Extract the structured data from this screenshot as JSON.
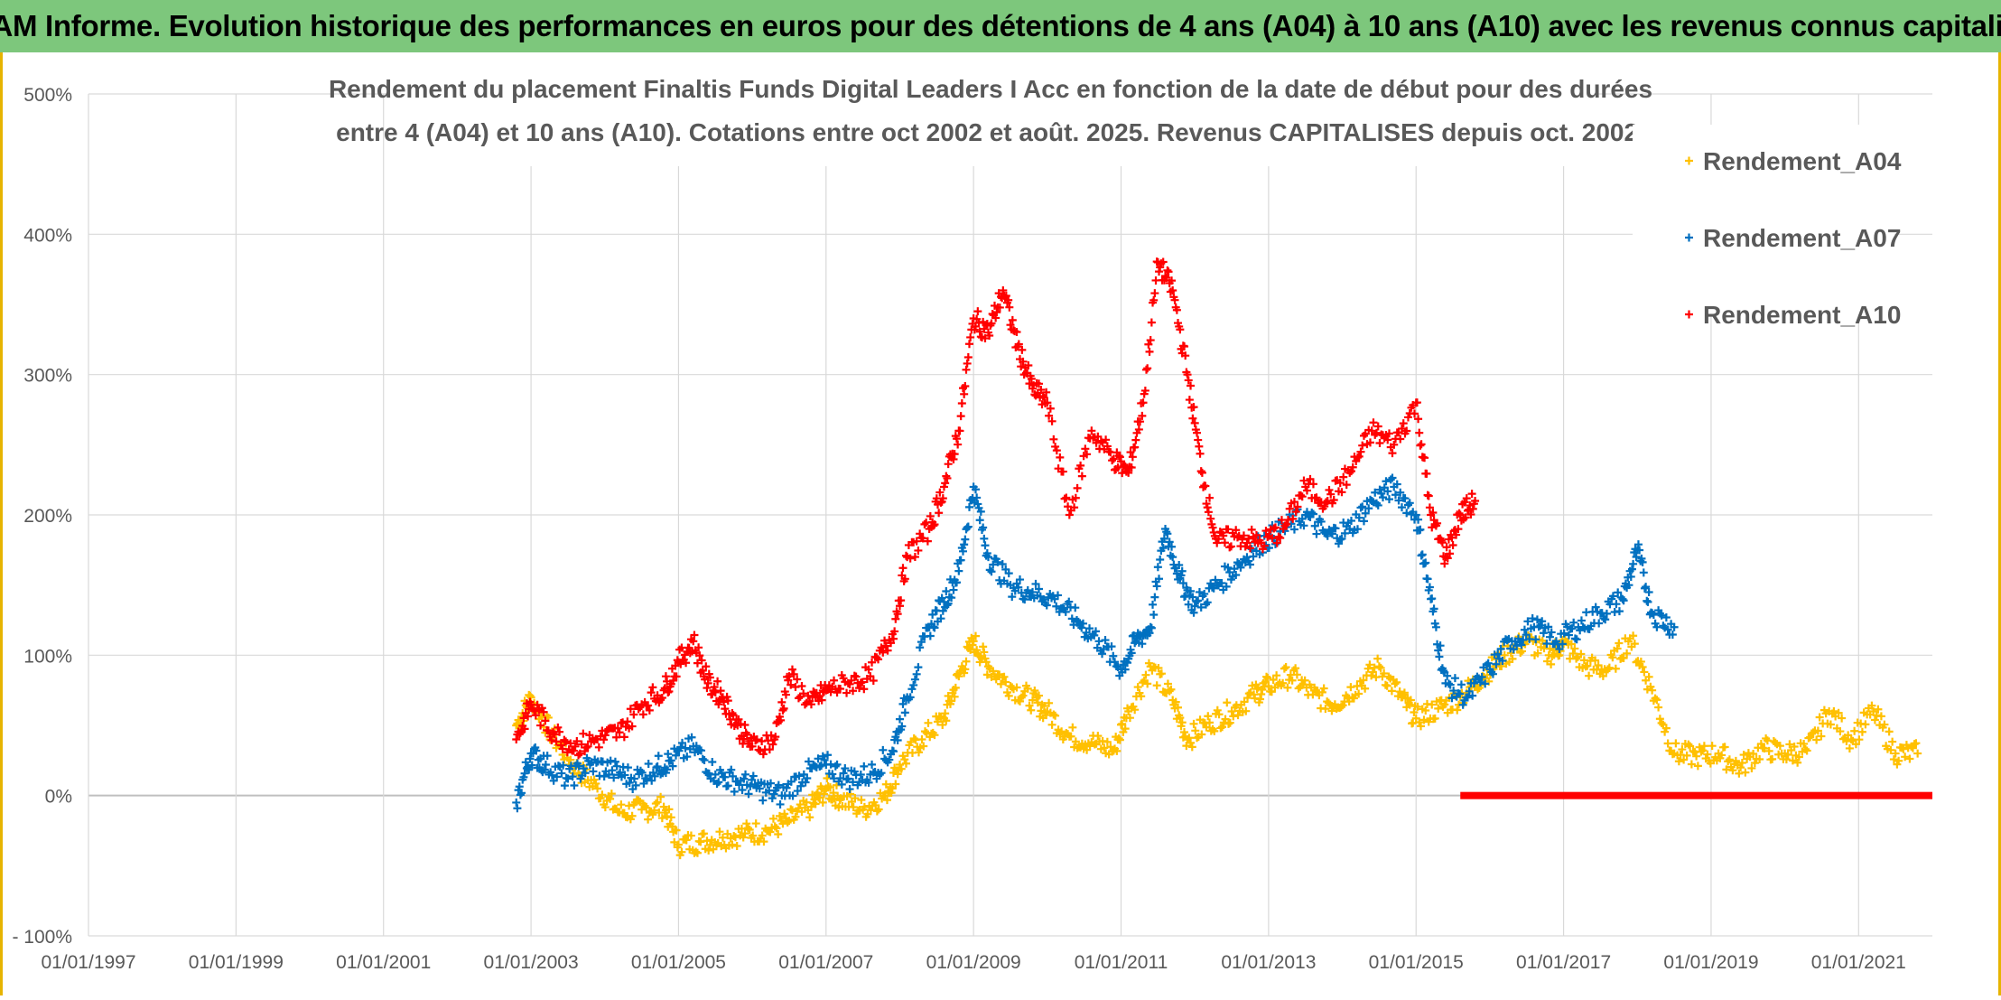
{
  "banner": {
    "title": "ADAM Informe. Evolution historique des performances en euros pour des détentions de 4 ans (A04) à 10 ans (A10) avec les revenus connus capitalisés"
  },
  "chart_data": {
    "type": "scatter",
    "title_line1": "Rendement du placement Finaltis Funds Digital Leaders I Acc en fonction de la date de début pour des durées",
    "title_line2": "entre 4 (A04) et 10 ans (A10). Cotations entre oct 2002 et août. 2025. Revenus CAPITALISES depuis oct. 2002.",
    "xlim": [
      1997.0,
      2022.0
    ],
    "ylim": [
      -100,
      500
    ],
    "y_ticks": [
      -100,
      0,
      100,
      200,
      300,
      400,
      500
    ],
    "y_tick_labels": [
      "- 100%",
      "0%",
      "100%",
      "200%",
      "300%",
      "400%",
      "500%"
    ],
    "x_tick_labels": [
      "01/01/1997",
      "01/01/1999",
      "01/01/2001",
      "01/01/2003",
      "01/01/2005",
      "01/01/2007",
      "01/01/2009",
      "01/01/2011",
      "01/01/2013",
      "01/01/2015",
      "01/01/2017",
      "01/01/2019",
      "01/01/2021"
    ],
    "x_tick_values": [
      1997,
      1999,
      2001,
      2003,
      2005,
      2007,
      2009,
      2011,
      2013,
      2015,
      2017,
      2019,
      2021
    ],
    "grid": true,
    "legend_position": "top-right",
    "series": [
      {
        "name": "Rendement_A04",
        "color": "#ffc000",
        "points": [
          [
            2002.8,
            50
          ],
          [
            2003.0,
            70
          ],
          [
            2003.3,
            42
          ],
          [
            2003.6,
            20
          ],
          [
            2003.9,
            5
          ],
          [
            2004.2,
            -12
          ],
          [
            2004.5,
            -10
          ],
          [
            2004.8,
            -8
          ],
          [
            2005.0,
            -35
          ],
          [
            2005.3,
            -33
          ],
          [
            2005.6,
            -30
          ],
          [
            2005.9,
            -27
          ],
          [
            2006.2,
            -25
          ],
          [
            2006.5,
            -18
          ],
          [
            2006.8,
            -8
          ],
          [
            2007.0,
            5
          ],
          [
            2007.2,
            -2
          ],
          [
            2007.5,
            -10
          ],
          [
            2007.8,
            0
          ],
          [
            2008.0,
            22
          ],
          [
            2008.3,
            40
          ],
          [
            2008.6,
            55
          ],
          [
            2008.8,
            85
          ],
          [
            2009.0,
            110
          ],
          [
            2009.2,
            92
          ],
          [
            2009.5,
            78
          ],
          [
            2009.8,
            68
          ],
          [
            2010.0,
            60
          ],
          [
            2010.3,
            42
          ],
          [
            2010.6,
            38
          ],
          [
            2010.9,
            32
          ],
          [
            2011.1,
            60
          ],
          [
            2011.4,
            92
          ],
          [
            2011.7,
            68
          ],
          [
            2011.9,
            40
          ],
          [
            2012.2,
            52
          ],
          [
            2012.5,
            60
          ],
          [
            2012.8,
            72
          ],
          [
            2013.0,
            78
          ],
          [
            2013.3,
            86
          ],
          [
            2013.6,
            72
          ],
          [
            2013.9,
            65
          ],
          [
            2014.2,
            78
          ],
          [
            2014.5,
            92
          ],
          [
            2014.8,
            70
          ],
          [
            2015.0,
            55
          ],
          [
            2015.3,
            62
          ],
          [
            2015.6,
            70
          ],
          [
            2015.9,
            85
          ],
          [
            2016.2,
            100
          ],
          [
            2016.5,
            110
          ],
          [
            2016.8,
            100
          ],
          [
            2017.0,
            108
          ],
          [
            2017.3,
            92
          ],
          [
            2017.6,
            90
          ],
          [
            2017.9,
            112
          ],
          [
            2018.2,
            75
          ],
          [
            2018.5,
            30
          ],
          [
            2018.8,
            28
          ],
          [
            2019.1,
            30
          ],
          [
            2019.4,
            20
          ],
          [
            2019.7,
            34
          ],
          [
            2020.0,
            30
          ],
          [
            2020.3,
            32
          ],
          [
            2020.6,
            60
          ],
          [
            2020.9,
            40
          ],
          [
            2021.2,
            60
          ],
          [
            2021.5,
            30
          ],
          [
            2021.8,
            30
          ]
        ]
      },
      {
        "name": "Rendement_A07",
        "color": "#0070c0",
        "points": [
          [
            2002.8,
            -5
          ],
          [
            2003.0,
            30
          ],
          [
            2003.2,
            22
          ],
          [
            2003.5,
            12
          ],
          [
            2003.8,
            22
          ],
          [
            2004.1,
            18
          ],
          [
            2004.4,
            12
          ],
          [
            2004.7,
            20
          ],
          [
            2004.9,
            25
          ],
          [
            2005.2,
            35
          ],
          [
            2005.5,
            15
          ],
          [
            2005.8,
            10
          ],
          [
            2006.1,
            5
          ],
          [
            2006.4,
            0
          ],
          [
            2006.7,
            15
          ],
          [
            2007.0,
            22
          ],
          [
            2007.3,
            12
          ],
          [
            2007.6,
            15
          ],
          [
            2007.9,
            32
          ],
          [
            2008.1,
            70
          ],
          [
            2008.4,
            120
          ],
          [
            2008.6,
            138
          ],
          [
            2008.8,
            160
          ],
          [
            2009.0,
            220
          ],
          [
            2009.2,
            170
          ],
          [
            2009.5,
            150
          ],
          [
            2009.8,
            145
          ],
          [
            2010.1,
            140
          ],
          [
            2010.4,
            125
          ],
          [
            2010.7,
            110
          ],
          [
            2011.0,
            90
          ],
          [
            2011.2,
            110
          ],
          [
            2011.4,
            120
          ],
          [
            2011.6,
            190
          ],
          [
            2011.8,
            155
          ],
          [
            2012.0,
            135
          ],
          [
            2012.3,
            150
          ],
          [
            2012.6,
            165
          ],
          [
            2012.9,
            180
          ],
          [
            2013.2,
            190
          ],
          [
            2013.5,
            200
          ],
          [
            2013.8,
            185
          ],
          [
            2014.1,
            190
          ],
          [
            2014.4,
            210
          ],
          [
            2014.7,
            220
          ],
          [
            2015.0,
            200
          ],
          [
            2015.2,
            140
          ],
          [
            2015.4,
            80
          ],
          [
            2015.7,
            70
          ],
          [
            2016.0,
            90
          ],
          [
            2016.3,
            110
          ],
          [
            2016.6,
            120
          ],
          [
            2016.9,
            110
          ],
          [
            2017.2,
            120
          ],
          [
            2017.5,
            130
          ],
          [
            2017.8,
            140
          ],
          [
            2018.0,
            175
          ],
          [
            2018.2,
            130
          ],
          [
            2018.5,
            120
          ]
        ]
      },
      {
        "name": "Rendement_A10",
        "color": "#ff0000",
        "points": [
          [
            2002.8,
            40
          ],
          [
            2003.0,
            65
          ],
          [
            2003.3,
            45
          ],
          [
            2003.6,
            35
          ],
          [
            2003.9,
            40
          ],
          [
            2004.2,
            45
          ],
          [
            2004.5,
            65
          ],
          [
            2004.8,
            75
          ],
          [
            2005.0,
            95
          ],
          [
            2005.2,
            110
          ],
          [
            2005.4,
            80
          ],
          [
            2005.6,
            70
          ],
          [
            2005.8,
            50
          ],
          [
            2006.0,
            35
          ],
          [
            2006.3,
            40
          ],
          [
            2006.5,
            85
          ],
          [
            2006.8,
            65
          ],
          [
            2007.0,
            75
          ],
          [
            2007.3,
            80
          ],
          [
            2007.6,
            85
          ],
          [
            2007.9,
            115
          ],
          [
            2008.1,
            170
          ],
          [
            2008.4,
            190
          ],
          [
            2008.6,
            220
          ],
          [
            2008.8,
            260
          ],
          [
            2009.0,
            340
          ],
          [
            2009.2,
            330
          ],
          [
            2009.4,
            360
          ],
          [
            2009.6,
            320
          ],
          [
            2009.8,
            290
          ],
          [
            2010.0,
            280
          ],
          [
            2010.3,
            200
          ],
          [
            2010.6,
            260
          ],
          [
            2010.9,
            240
          ],
          [
            2011.1,
            230
          ],
          [
            2011.3,
            280
          ],
          [
            2011.5,
            380
          ],
          [
            2011.7,
            360
          ],
          [
            2011.9,
            300
          ],
          [
            2012.1,
            230
          ],
          [
            2012.3,
            180
          ],
          [
            2012.6,
            185
          ],
          [
            2012.9,
            180
          ],
          [
            2013.2,
            190
          ],
          [
            2013.5,
            220
          ],
          [
            2013.8,
            210
          ],
          [
            2014.1,
            230
          ],
          [
            2014.4,
            260
          ],
          [
            2014.7,
            250
          ],
          [
            2015.0,
            280
          ],
          [
            2015.2,
            200
          ],
          [
            2015.4,
            170
          ],
          [
            2015.6,
            200
          ],
          [
            2015.8,
            210
          ]
        ]
      }
    ],
    "zero_segment": {
      "series": "Rendement_A10",
      "x_start": 2015.6,
      "x_end": 2022.0,
      "y": 0
    }
  }
}
